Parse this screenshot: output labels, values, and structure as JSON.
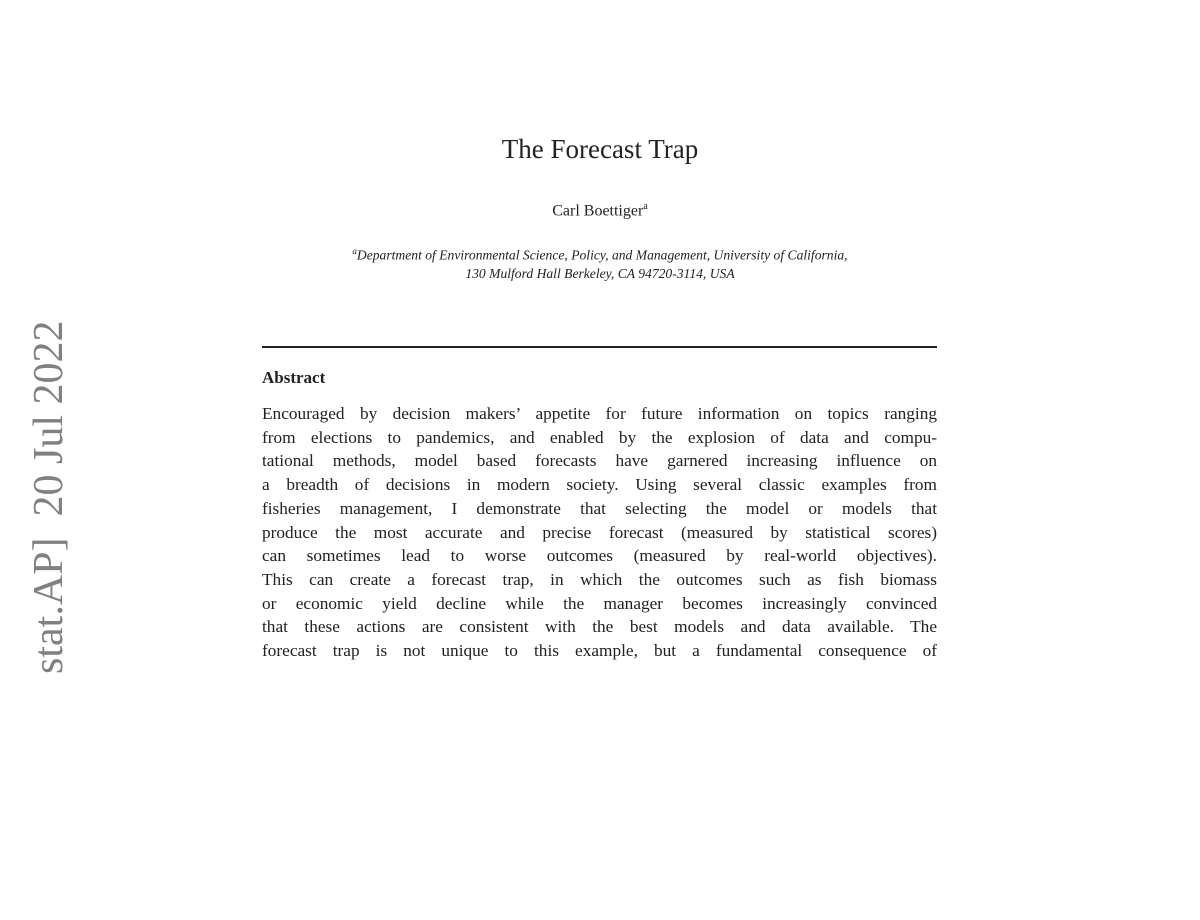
{
  "stamp": "stat.AP]  20 Jul 2022",
  "title": "The Forecast Trap",
  "author": {
    "name": "Carl Boettiger",
    "mark": "a"
  },
  "affiliation": {
    "mark": "a",
    "line1": "Department of Environmental Science, Policy, and Management, University of California,",
    "line2": "130 Mulford Hall Berkeley, CA 94720-3114, USA"
  },
  "abstract": {
    "heading": "Abstract",
    "lines": [
      "Encouraged by decision makers’ appetite for future information on topics ranging",
      "from elections to pandemics, and enabled by the explosion of data and compu-",
      "tational methods, model based forecasts have garnered increasing influence on",
      "a breadth of decisions in modern society. Using several classic examples from",
      "fisheries management, I demonstrate that selecting the model or models that",
      "produce the most accurate and precise forecast (measured by statistical scores)",
      "can sometimes lead to worse outcomes (measured by real-world objectives).",
      "This can create a forecast trap, in which the outcomes such as fish biomass",
      "or economic yield decline while the manager becomes increasingly convinced",
      "that these actions are consistent with the best models and data available. The",
      "forecast trap is not unique to this example, but a fundamental consequence of"
    ]
  }
}
